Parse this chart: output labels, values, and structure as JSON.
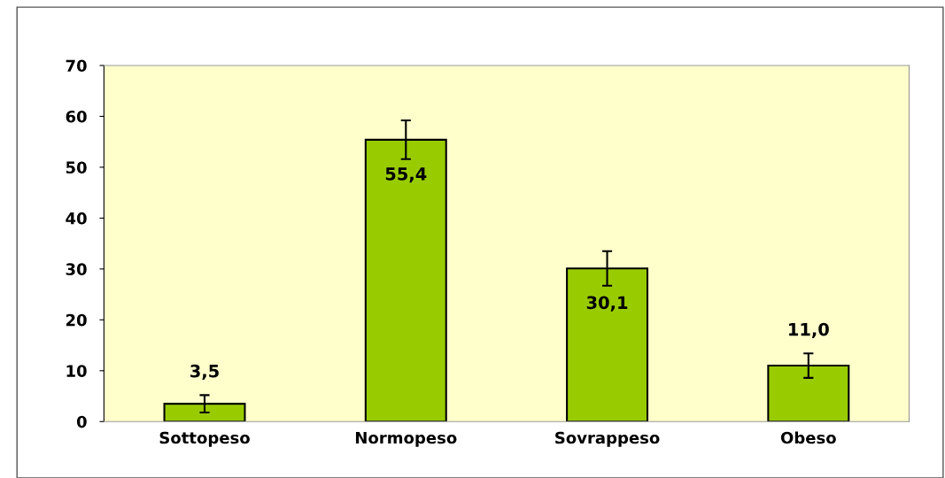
{
  "chart_data": {
    "type": "bar",
    "categories": [
      "Sottopeso",
      "Normopeso",
      "Sovrappeso",
      "Obeso"
    ],
    "values": [
      3.5,
      55.4,
      30.1,
      11.0
    ],
    "errors": [
      1.7,
      3.8,
      3.4,
      2.4
    ],
    "value_labels": [
      "3,5",
      "55,4",
      "30,1",
      "11,0"
    ],
    "color": "#99cc00",
    "ylim": [
      0,
      70
    ],
    "yticks": [
      0,
      10,
      20,
      30,
      40,
      50,
      60,
      70
    ],
    "grid": false,
    "legend": false
  }
}
